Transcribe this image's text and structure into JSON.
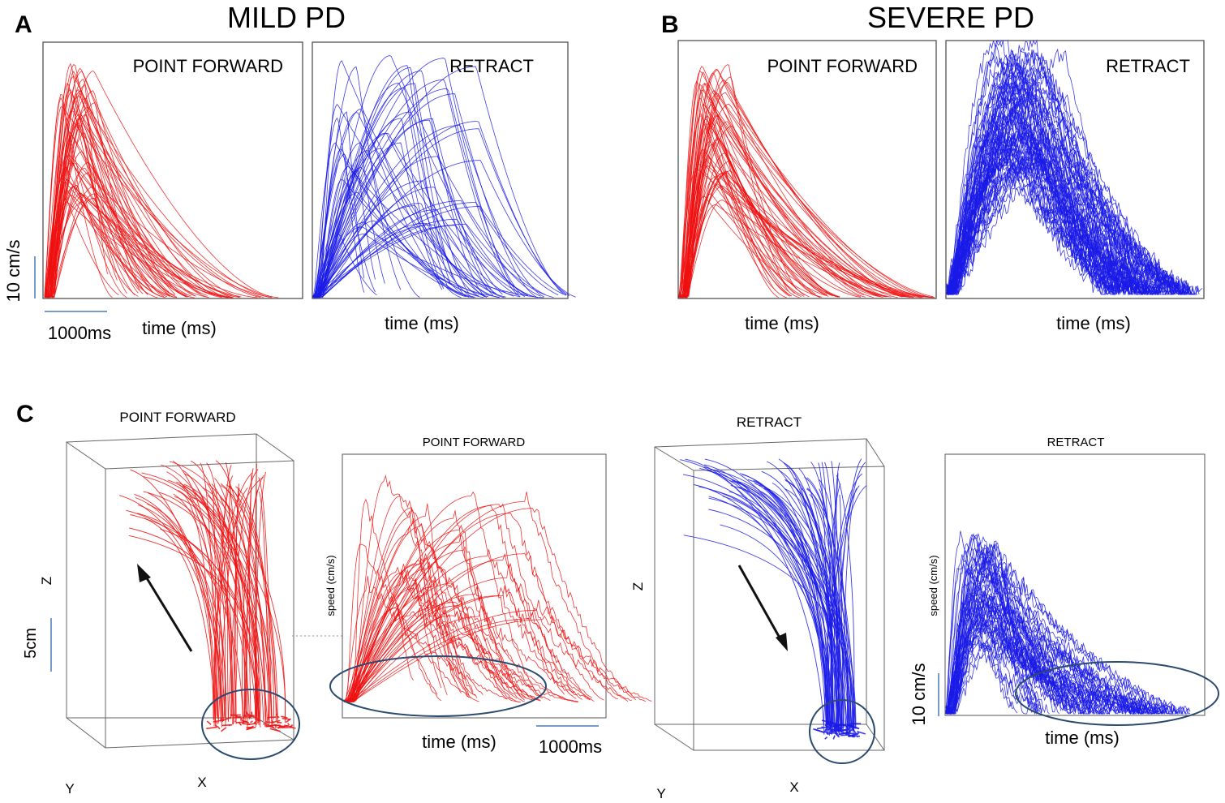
{
  "figure": {
    "panel_letters": [
      "A",
      "B",
      "C"
    ],
    "titles": {
      "mild": "MILD PD",
      "severe": "SEVERE PD"
    },
    "colors": {
      "forward": "#ee1111",
      "retract": "#1a1ae8",
      "ellipse": "#2b4a6f",
      "scalebar": "#4a7ab5"
    }
  },
  "chart_data": [
    {
      "id": "A-forward",
      "type": "line",
      "panel": "A",
      "subtitle": "POINT FORWARD",
      "xlabel": "time (ms)",
      "ylabel": "10 cm/s",
      "scale_bar_x": "1000ms",
      "color": "#ee1111",
      "n_traces": 60,
      "peak_time_ms": [
        250,
        700
      ],
      "peak_speed_cm_s": [
        20,
        52
      ],
      "duration_ms": [
        900,
        3700
      ],
      "xlim": [
        0,
        4000
      ],
      "ylim": [
        0,
        55
      ]
    },
    {
      "id": "A-retract",
      "type": "line",
      "panel": "A",
      "subtitle": "RETRACT",
      "xlabel": "time (ms)",
      "color": "#1a1ae8",
      "n_traces": 60,
      "peak_time_ms": [
        300,
        2700
      ],
      "peak_speed_cm_s": [
        15,
        60
      ],
      "duration_ms": [
        700,
        3700
      ],
      "xlim": [
        0,
        4000
      ],
      "ylim": [
        0,
        60
      ]
    },
    {
      "id": "B-forward",
      "type": "line",
      "panel": "B",
      "subtitle": "POINT FORWARD",
      "xlabel": "time (ms)",
      "color": "#ee1111",
      "n_traces": 60,
      "peak_time_ms": [
        250,
        800
      ],
      "peak_speed_cm_s": [
        20,
        52
      ],
      "duration_ms": [
        1500,
        4000
      ],
      "xlim": [
        0,
        4000
      ],
      "ylim": [
        0,
        55
      ]
    },
    {
      "id": "B-retract",
      "type": "line",
      "panel": "B",
      "subtitle": "RETRACT",
      "xlabel": "time (ms)",
      "color": "#1a1ae8",
      "n_traces": 80,
      "peak_time_ms": [
        700,
        1800
      ],
      "peak_speed_cm_s": [
        30,
        60
      ],
      "duration_ms": [
        2500,
        4000
      ],
      "xlim": [
        0,
        4000
      ],
      "ylim": [
        0,
        60
      ]
    },
    {
      "id": "C-forward-3d",
      "type": "scatter",
      "panel": "C",
      "subtitle": "POINT FORWARD",
      "axis_labels": {
        "x": "X",
        "y": "Y",
        "z": "Z"
      },
      "scale_bar": "5cm",
      "color": "#ee1111",
      "n_traces": 70,
      "direction": "up"
    },
    {
      "id": "C-forward-speed",
      "type": "line",
      "panel": "C",
      "subtitle": "POINT FORWARD",
      "xlabel": "time (ms)",
      "ylabel": "speed (cm/s)",
      "scale_bar_x": "1000ms",
      "color": "#ee1111",
      "n_traces": 50,
      "peak_time_ms": [
        100,
        2800
      ],
      "peak_speed_cm_s": [
        20,
        55
      ],
      "duration_ms": [
        300,
        3300
      ],
      "xlim": [
        0,
        3300
      ],
      "ylim": [
        0,
        60
      ]
    },
    {
      "id": "C-retract-3d",
      "type": "scatter",
      "panel": "C",
      "subtitle": "RETRACT",
      "axis_labels": {
        "x": "X",
        "y": "Y",
        "z": "Z"
      },
      "color": "#1a1ae8",
      "n_traces": 70,
      "direction": "down"
    },
    {
      "id": "C-retract-speed",
      "type": "line",
      "panel": "C",
      "subtitle": "RETRACT",
      "xlabel": "time (ms)",
      "ylabel": "speed (cm/s)",
      "scale_bar_y": "10 cm/s",
      "color": "#1a1ae8",
      "n_traces": 60,
      "peak_time_ms": [
        200,
        800
      ],
      "peak_speed_cm_s": [
        20,
        55
      ],
      "duration_ms": [
        1000,
        3800
      ],
      "xlim": [
        0,
        4000
      ],
      "ylim": [
        0,
        60
      ]
    }
  ]
}
